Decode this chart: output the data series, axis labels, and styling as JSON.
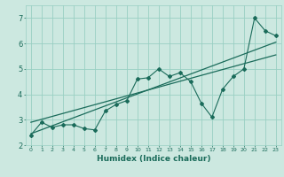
{
  "xlabel": "Humidex (Indice chaleur)",
  "ylabel": "",
  "x_data": [
    0,
    1,
    2,
    3,
    4,
    5,
    6,
    7,
    8,
    9,
    10,
    11,
    12,
    13,
    14,
    15,
    16,
    17,
    18,
    19,
    20,
    21,
    22,
    23
  ],
  "y_data": [
    2.4,
    2.9,
    2.7,
    2.8,
    2.8,
    2.65,
    2.6,
    3.35,
    3.6,
    3.75,
    4.6,
    4.65,
    5.0,
    4.7,
    4.85,
    4.5,
    3.65,
    3.1,
    4.2,
    4.7,
    5.0,
    7.0,
    6.5,
    6.3
  ],
  "trend_x": [
    0,
    23
  ],
  "trend_y": [
    2.45,
    6.05
  ],
  "trend2_x": [
    0,
    23
  ],
  "trend2_y": [
    2.9,
    5.55
  ],
  "ylim": [
    2.0,
    7.5
  ],
  "xlim": [
    -0.5,
    23.5
  ],
  "yticks": [
    2,
    3,
    4,
    5,
    6,
    7
  ],
  "xticks": [
    0,
    1,
    2,
    3,
    4,
    5,
    6,
    7,
    8,
    9,
    10,
    11,
    12,
    13,
    14,
    15,
    16,
    17,
    18,
    19,
    20,
    21,
    22,
    23
  ],
  "line_color": "#1a6b5a",
  "bg_color": "#cce8e0",
  "grid_color": "#99cfc3"
}
